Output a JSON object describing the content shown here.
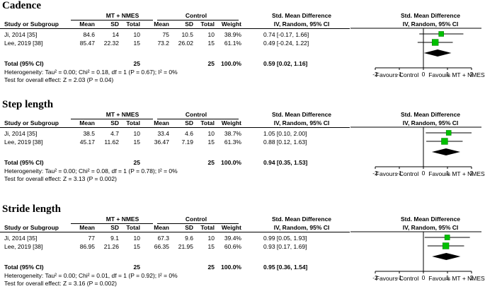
{
  "columns": {
    "study": "Study or Subgroup",
    "group1": "MT + NMES",
    "group2": "Control",
    "mean": "Mean",
    "sd": "SD",
    "total": "Total",
    "weight": "Weight",
    "effect_title": "Std. Mean Difference",
    "effect_method": "IV, Random, 95% CI"
  },
  "favours": {
    "left": "Favours Control",
    "right": "Favours MT + NMES"
  },
  "chart_data": [
    {
      "type": "forest",
      "title": "Cadence",
      "xlim": [
        -2,
        2
      ],
      "ticks": [
        "-2",
        "-1",
        "0",
        "1",
        "2"
      ],
      "studies": [
        {
          "name": "Ji, 2014 [35]",
          "m1": "84.6",
          "sd1": "14",
          "n1": "10",
          "m2": "75",
          "sd2": "10.5",
          "n2": "10",
          "weight": "38.9%",
          "ci_text": "0.74 [-0.17, 1.66]",
          "est": 0.74,
          "lo": -0.17,
          "hi": 1.66,
          "w": 38.9
        },
        {
          "name": "Lee, 2019 [38]",
          "m1": "85.47",
          "sd1": "22.32",
          "n1": "15",
          "m2": "73.2",
          "sd2": "26.02",
          "n2": "15",
          "weight": "61.1%",
          "ci_text": "0.49 [-0.24, 1.22]",
          "est": 0.49,
          "lo": -0.24,
          "hi": 1.22,
          "w": 61.1
        }
      ],
      "total": {
        "label": "Total (95% CI)",
        "n1": "25",
        "n2": "25",
        "weight": "100.0%",
        "ci_text": "0.59 [0.02, 1.16]",
        "est": 0.59,
        "lo": 0.02,
        "hi": 1.16
      },
      "heterogeneity": "Heterogeneity: Tau² = 0.00; Chi² = 0.18, df = 1 (P = 0.67); I² = 0%",
      "overall": "Test for overall effect: Z = 2.03 (P = 0.04)"
    },
    {
      "type": "forest",
      "title": "Step length",
      "xlim": [
        -2,
        2
      ],
      "ticks": [
        "-2",
        "-1",
        "0",
        "1",
        "2"
      ],
      "studies": [
        {
          "name": "Ji, 2014 [35]",
          "m1": "38.5",
          "sd1": "4.7",
          "n1": "10",
          "m2": "33.4",
          "sd2": "4.6",
          "n2": "10",
          "weight": "38.7%",
          "ci_text": "1.05 [0.10, 2.00]",
          "est": 1.05,
          "lo": 0.1,
          "hi": 2.0,
          "w": 38.7
        },
        {
          "name": "Lee, 2019 [38]",
          "m1": "45.17",
          "sd1": "11.62",
          "n1": "15",
          "m2": "36.47",
          "sd2": "7.19",
          "n2": "15",
          "weight": "61.3%",
          "ci_text": "0.88 [0.12, 1.63]",
          "est": 0.88,
          "lo": 0.12,
          "hi": 1.63,
          "w": 61.3
        }
      ],
      "total": {
        "label": "Total (95% CI)",
        "n1": "25",
        "n2": "25",
        "weight": "100.0%",
        "ci_text": "0.94 [0.35, 1.53]",
        "est": 0.94,
        "lo": 0.35,
        "hi": 1.53
      },
      "heterogeneity": "Heterogeneity: Tau² = 0.00; Chi² = 0.08, df = 1 (P = 0.78); I² = 0%",
      "overall": "Test for overall effect: Z = 3.13 (P = 0.002)"
    },
    {
      "type": "forest",
      "title": "Stride length",
      "xlim": [
        -2,
        2
      ],
      "ticks": [
        "-2",
        "-1",
        "0",
        "1",
        "2"
      ],
      "studies": [
        {
          "name": "Ji, 2014 [35]",
          "m1": "77",
          "sd1": "9.1",
          "n1": "10",
          "m2": "67.3",
          "sd2": "9.6",
          "n2": "10",
          "weight": "39.4%",
          "ci_text": "0.99 [0.05, 1.93]",
          "est": 0.99,
          "lo": 0.05,
          "hi": 1.93,
          "w": 39.4
        },
        {
          "name": "Lee, 2019 [38]",
          "m1": "86.95",
          "sd1": "21.26",
          "n1": "15",
          "m2": "66.35",
          "sd2": "21.95",
          "n2": "15",
          "weight": "60.6%",
          "ci_text": "0.93 [0.17, 1.69]",
          "est": 0.93,
          "lo": 0.17,
          "hi": 1.69,
          "w": 60.6
        }
      ],
      "total": {
        "label": "Total (95% CI)",
        "n1": "25",
        "n2": "25",
        "weight": "100.0%",
        "ci_text": "0.95 [0.36, 1.54]",
        "est": 0.95,
        "lo": 0.36,
        "hi": 1.54
      },
      "heterogeneity": "Heterogeneity: Tau² = 0.00; Chi² = 0.01, df = 1 (P = 0.92); I² = 0%",
      "overall": "Test for overall effect: Z = 3.16 (P = 0.002)"
    }
  ],
  "colors": {
    "marker": "#00c000",
    "marker_edge": "#007a00",
    "diamond": "#000000",
    "axis": "#000000",
    "ci_line": "#000000"
  }
}
